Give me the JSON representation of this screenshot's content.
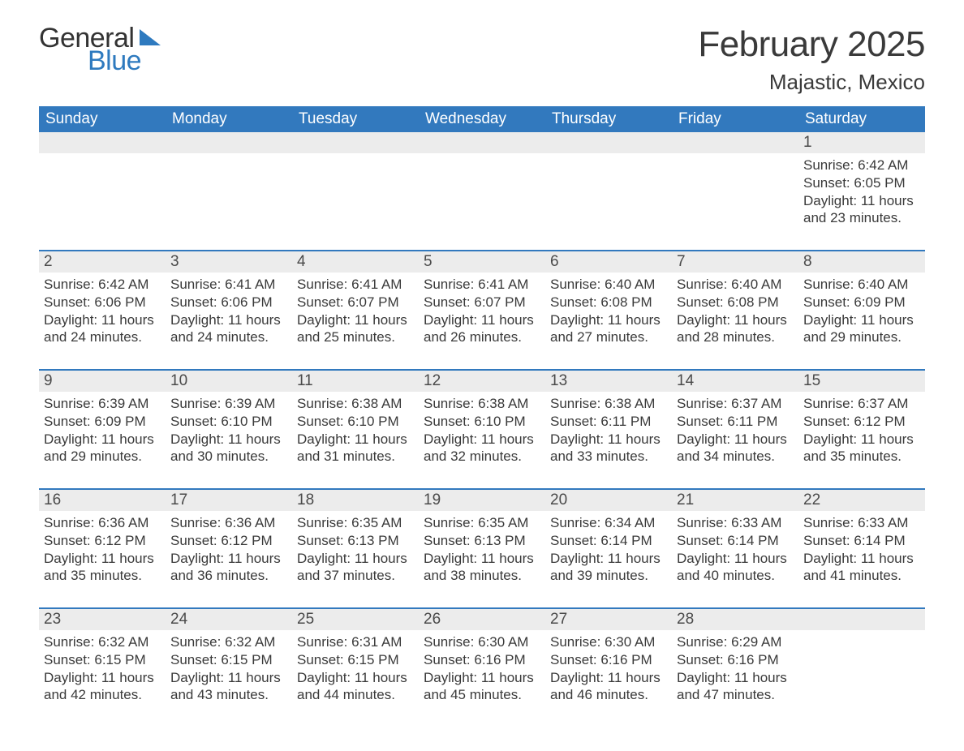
{
  "brand": {
    "word1": "General",
    "word2": "Blue",
    "accent": "#2e7abf"
  },
  "title": {
    "month_year": "February 2025",
    "location": "Majastic, Mexico"
  },
  "colors": {
    "header_bg": "#3279be",
    "header_text": "#ffffff",
    "daynum_bg": "#ececec",
    "text": "#3a3a3a",
    "week_separator": "#3279be",
    "page_bg": "#ffffff"
  },
  "typography": {
    "title_fontsize": 44,
    "location_fontsize": 26,
    "dayhead_fontsize": 19,
    "daynum_fontsize": 19,
    "body_fontsize": 17,
    "font_family": "Segoe UI / Helvetica Neue / Arial"
  },
  "day_headers": [
    "Sunday",
    "Monday",
    "Tuesday",
    "Wednesday",
    "Thursday",
    "Friday",
    "Saturday"
  ],
  "weeks": [
    [
      null,
      null,
      null,
      null,
      null,
      null,
      {
        "n": "1",
        "sunrise": "Sunrise: 6:42 AM",
        "sunset": "Sunset: 6:05 PM",
        "daylight": "Daylight: 11 hours and 23 minutes."
      }
    ],
    [
      {
        "n": "2",
        "sunrise": "Sunrise: 6:42 AM",
        "sunset": "Sunset: 6:06 PM",
        "daylight": "Daylight: 11 hours and 24 minutes."
      },
      {
        "n": "3",
        "sunrise": "Sunrise: 6:41 AM",
        "sunset": "Sunset: 6:06 PM",
        "daylight": "Daylight: 11 hours and 24 minutes."
      },
      {
        "n": "4",
        "sunrise": "Sunrise: 6:41 AM",
        "sunset": "Sunset: 6:07 PM",
        "daylight": "Daylight: 11 hours and 25 minutes."
      },
      {
        "n": "5",
        "sunrise": "Sunrise: 6:41 AM",
        "sunset": "Sunset: 6:07 PM",
        "daylight": "Daylight: 11 hours and 26 minutes."
      },
      {
        "n": "6",
        "sunrise": "Sunrise: 6:40 AM",
        "sunset": "Sunset: 6:08 PM",
        "daylight": "Daylight: 11 hours and 27 minutes."
      },
      {
        "n": "7",
        "sunrise": "Sunrise: 6:40 AM",
        "sunset": "Sunset: 6:08 PM",
        "daylight": "Daylight: 11 hours and 28 minutes."
      },
      {
        "n": "8",
        "sunrise": "Sunrise: 6:40 AM",
        "sunset": "Sunset: 6:09 PM",
        "daylight": "Daylight: 11 hours and 29 minutes."
      }
    ],
    [
      {
        "n": "9",
        "sunrise": "Sunrise: 6:39 AM",
        "sunset": "Sunset: 6:09 PM",
        "daylight": "Daylight: 11 hours and 29 minutes."
      },
      {
        "n": "10",
        "sunrise": "Sunrise: 6:39 AM",
        "sunset": "Sunset: 6:10 PM",
        "daylight": "Daylight: 11 hours and 30 minutes."
      },
      {
        "n": "11",
        "sunrise": "Sunrise: 6:38 AM",
        "sunset": "Sunset: 6:10 PM",
        "daylight": "Daylight: 11 hours and 31 minutes."
      },
      {
        "n": "12",
        "sunrise": "Sunrise: 6:38 AM",
        "sunset": "Sunset: 6:10 PM",
        "daylight": "Daylight: 11 hours and 32 minutes."
      },
      {
        "n": "13",
        "sunrise": "Sunrise: 6:38 AM",
        "sunset": "Sunset: 6:11 PM",
        "daylight": "Daylight: 11 hours and 33 minutes."
      },
      {
        "n": "14",
        "sunrise": "Sunrise: 6:37 AM",
        "sunset": "Sunset: 6:11 PM",
        "daylight": "Daylight: 11 hours and 34 minutes."
      },
      {
        "n": "15",
        "sunrise": "Sunrise: 6:37 AM",
        "sunset": "Sunset: 6:12 PM",
        "daylight": "Daylight: 11 hours and 35 minutes."
      }
    ],
    [
      {
        "n": "16",
        "sunrise": "Sunrise: 6:36 AM",
        "sunset": "Sunset: 6:12 PM",
        "daylight": "Daylight: 11 hours and 35 minutes."
      },
      {
        "n": "17",
        "sunrise": "Sunrise: 6:36 AM",
        "sunset": "Sunset: 6:12 PM",
        "daylight": "Daylight: 11 hours and 36 minutes."
      },
      {
        "n": "18",
        "sunrise": "Sunrise: 6:35 AM",
        "sunset": "Sunset: 6:13 PM",
        "daylight": "Daylight: 11 hours and 37 minutes."
      },
      {
        "n": "19",
        "sunrise": "Sunrise: 6:35 AM",
        "sunset": "Sunset: 6:13 PM",
        "daylight": "Daylight: 11 hours and 38 minutes."
      },
      {
        "n": "20",
        "sunrise": "Sunrise: 6:34 AM",
        "sunset": "Sunset: 6:14 PM",
        "daylight": "Daylight: 11 hours and 39 minutes."
      },
      {
        "n": "21",
        "sunrise": "Sunrise: 6:33 AM",
        "sunset": "Sunset: 6:14 PM",
        "daylight": "Daylight: 11 hours and 40 minutes."
      },
      {
        "n": "22",
        "sunrise": "Sunrise: 6:33 AM",
        "sunset": "Sunset: 6:14 PM",
        "daylight": "Daylight: 11 hours and 41 minutes."
      }
    ],
    [
      {
        "n": "23",
        "sunrise": "Sunrise: 6:32 AM",
        "sunset": "Sunset: 6:15 PM",
        "daylight": "Daylight: 11 hours and 42 minutes."
      },
      {
        "n": "24",
        "sunrise": "Sunrise: 6:32 AM",
        "sunset": "Sunset: 6:15 PM",
        "daylight": "Daylight: 11 hours and 43 minutes."
      },
      {
        "n": "25",
        "sunrise": "Sunrise: 6:31 AM",
        "sunset": "Sunset: 6:15 PM",
        "daylight": "Daylight: 11 hours and 44 minutes."
      },
      {
        "n": "26",
        "sunrise": "Sunrise: 6:30 AM",
        "sunset": "Sunset: 6:16 PM",
        "daylight": "Daylight: 11 hours and 45 minutes."
      },
      {
        "n": "27",
        "sunrise": "Sunrise: 6:30 AM",
        "sunset": "Sunset: 6:16 PM",
        "daylight": "Daylight: 11 hours and 46 minutes."
      },
      {
        "n": "28",
        "sunrise": "Sunrise: 6:29 AM",
        "sunset": "Sunset: 6:16 PM",
        "daylight": "Daylight: 11 hours and 47 minutes."
      },
      null
    ]
  ]
}
